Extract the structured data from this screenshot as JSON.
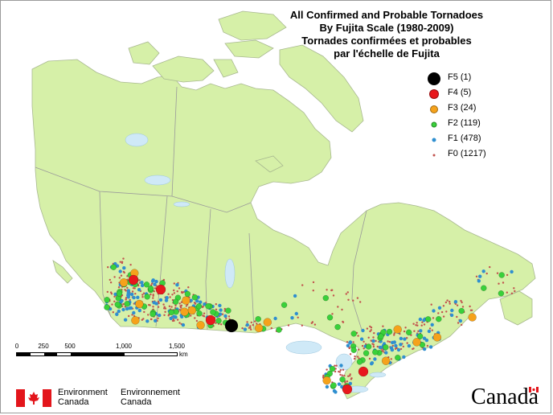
{
  "title": {
    "line1": "All Confirmed and Probable Tornadoes",
    "line2": "By Fujita Scale (1980-2009)",
    "line3": "Tornades confirmées et probables",
    "line4": "par l'échelle de Fujita"
  },
  "legend": [
    {
      "label": "F5 (1)",
      "color": "#000000"
    },
    {
      "label": "F4 (5)",
      "color": "#e8171c"
    },
    {
      "label": "F3 (24)",
      "color": "#f5a21b"
    },
    {
      "label": "F2 (119)",
      "color": "#39d13a"
    },
    {
      "label": "F1 (478)",
      "color": "#2f8fd0"
    },
    {
      "label": "F0 (1217)",
      "color": "#c2524d"
    }
  ],
  "scale": {
    "ticks": [
      "0",
      "250",
      "500",
      "1,000",
      "1,500"
    ],
    "unit": "km"
  },
  "footer": {
    "agency_en_line1": "Environment",
    "agency_en_line2": "Canada",
    "agency_fr_line1": "Environnement",
    "agency_fr_line2": "Canada",
    "wordmark": "Canada"
  },
  "colors": {
    "land": "#d6f0a8",
    "water": "#ffffff",
    "lakes": "#cfe9f7",
    "borders": "#9a9a9a"
  }
}
